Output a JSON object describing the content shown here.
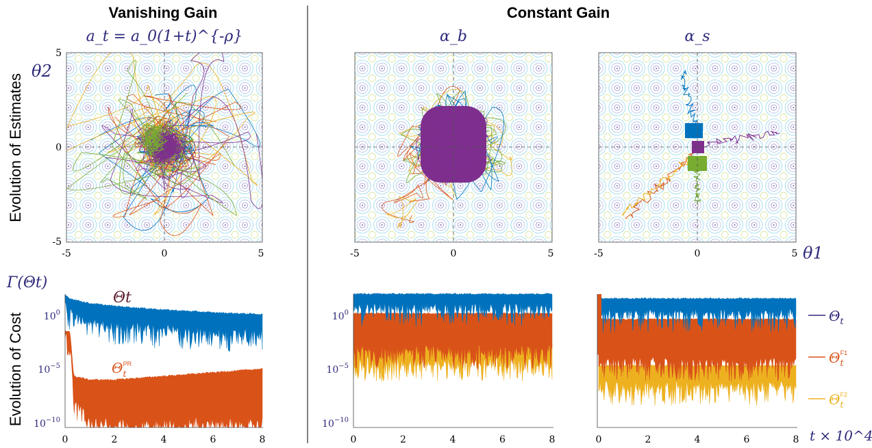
{
  "headers": {
    "vanishing": "Vanishing Gain",
    "vanishing_formula": "a_t = a_0(1+t)^{-ρ}",
    "constant": "Constant Gain",
    "alpha_b": "α_b",
    "alpha_s": "α_s"
  },
  "row_labels": {
    "estimates": "Evolution of Estimates",
    "cost": "Evolution of Cost"
  },
  "axis_symbols": {
    "theta2": "θ2",
    "theta1": "θ1",
    "gamma": "Γ(Θt)",
    "time": "t × 10^4"
  },
  "colors": {
    "blue": "#0072BD",
    "orange": "#D95319",
    "yellow": "#EDB120",
    "purple": "#7E2F8E",
    "green": "#77AC30",
    "lightblue": "#4DBEEE",
    "darkred": "#A2142F",
    "label_navy": "#2e2a7a"
  },
  "chart_data": [
    {
      "type": "line",
      "panel": "estimates-vanishing",
      "title": "",
      "xlabel": "θ1",
      "ylabel": "θ2",
      "xlim": [
        -5,
        5
      ],
      "ylim": [
        -5,
        5
      ],
      "xticks": [
        "-5",
        "0",
        "5"
      ],
      "yticks": [
        "5",
        "0",
        "-5"
      ],
      "background": "contour",
      "cluster": {
        "x": 0,
        "y": 0,
        "radius": 1.1
      },
      "series_colors": [
        "#0072BD",
        "#D95319",
        "#EDB120",
        "#7E2F8E",
        "#77AC30"
      ]
    },
    {
      "type": "line",
      "panel": "estimates-constant-alpha-b",
      "title": "α_b",
      "xlim": [
        -5,
        5
      ],
      "ylim": [
        -5,
        5
      ],
      "xticks": [
        "-5",
        "0",
        "5"
      ],
      "cluster": {
        "x": 0,
        "y": 0,
        "radius": 1.6
      }
    },
    {
      "type": "line",
      "panel": "estimates-constant-alpha-s",
      "title": "α_s",
      "xlim": [
        -5,
        5
      ],
      "ylim": [
        -5,
        5
      ],
      "xticks": [
        "-5",
        "0",
        "5"
      ],
      "clusters": [
        {
          "color": "#0072BD",
          "x": -0.1,
          "y": 0.8
        },
        {
          "color": "#77AC30",
          "x": 0.1,
          "y": -0.9
        },
        {
          "color": "#7E2F8E",
          "x": 0.0,
          "y": 0.0
        },
        {
          "color": "#D95319",
          "x": -2.5,
          "y": -2.5
        }
      ]
    },
    {
      "type": "area",
      "panel": "cost-vanishing",
      "yscale": "log",
      "xlim": [
        0,
        8
      ],
      "ylim": [
        1e-10,
        10
      ],
      "xticks": [
        "0",
        "2",
        "4",
        "6",
        "8"
      ],
      "yticks": [
        "10^0",
        "10^-5",
        "10^-10"
      ],
      "series": [
        {
          "name": "Θt",
          "color": "#0072BD",
          "x": [
            0,
            0.2,
            1,
            2,
            4,
            6,
            8
          ],
          "top": [
            10,
            5,
            2,
            1.2,
            0.6,
            0.35,
            0.25
          ],
          "bottom": [
            1,
            0.1,
            0.02,
            0.01,
            0.005,
            0.003,
            0.002
          ]
        },
        {
          "name": "Θt^PR",
          "color": "#D95319",
          "x": [
            0,
            0.2,
            0.35,
            1,
            2,
            4,
            6,
            8
          ],
          "top": [
            0.01,
            0.01,
            2e-06,
            1e-06,
            1e-06,
            2e-06,
            4e-06,
            8e-06
          ],
          "bottom": [
            0.001,
            0.0005,
            1e-08,
            1e-10,
            1e-10,
            1e-10,
            1e-10,
            1e-10
          ]
        }
      ]
    },
    {
      "type": "area",
      "panel": "cost-constant-alpha-b",
      "yscale": "log",
      "xlim": [
        0,
        8
      ],
      "ylim": [
        1e-10,
        10
      ],
      "xticks": [
        "0",
        "2",
        "4",
        "6",
        "8"
      ],
      "yticks": [
        "10^0",
        "10^-5",
        "10^-10"
      ],
      "series": [
        {
          "name": "Θt",
          "color": "#0072BD",
          "top": 12,
          "bottom": 0.3
        },
        {
          "name": "Θt^F1",
          "color": "#D95319",
          "top": 0.3,
          "bottom": 0.0001
        },
        {
          "name": "Θt^F2",
          "color": "#EDB120",
          "top": 0.001,
          "bottom": 1e-05
        }
      ]
    },
    {
      "type": "area",
      "panel": "cost-constant-alpha-s",
      "yscale": "log",
      "xlim": [
        0,
        8
      ],
      "ylim": [
        1e-10,
        10
      ],
      "xticks": [
        "0",
        "2",
        "4",
        "6",
        "8"
      ],
      "series": [
        {
          "name": "Θt",
          "color": "#0072BD",
          "top": 5,
          "bottom": 0.1
        },
        {
          "name": "Θt^F1",
          "color": "#D95319",
          "top": 0.1,
          "bottom": 1e-05
        },
        {
          "name": "Θt^F2",
          "color": "#EDB120",
          "top": 1e-05,
          "bottom": 1e-07
        }
      ]
    }
  ],
  "legend": {
    "placement": "right",
    "items": [
      {
        "label": "Θt",
        "color": "#2e2a7a"
      },
      {
        "label": "Θt^F1",
        "color": "#D95319"
      },
      {
        "label": "Θt^F2",
        "color": "#EDB120"
      }
    ]
  },
  "annotations": {
    "theta_t": "Θt",
    "theta_t_pr": "Θt^PR"
  }
}
